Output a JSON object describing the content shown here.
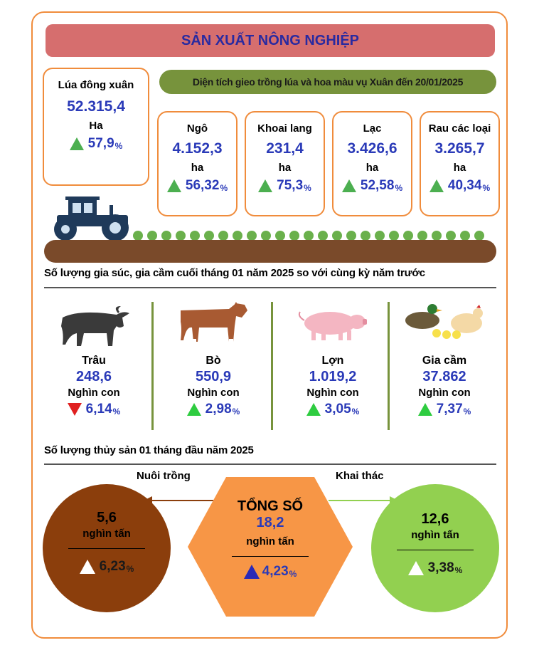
{
  "title": "SẢN XUẤT NÔNG NGHIỆP",
  "rice": {
    "label": "Lúa đông xuân",
    "value": "52.315,4",
    "unit": "Ha",
    "change": "57,9",
    "pct": "%"
  },
  "crops_banner": "Diện tích gieo trồng lúa và hoa màu vụ Xuân đến 20/01/2025",
  "crops": [
    {
      "label": "Ngô",
      "value": "4.152,3",
      "unit": "ha",
      "change": "56,32",
      "pct": "%"
    },
    {
      "label": "Khoai lang",
      "value": "231,4",
      "unit": "ha",
      "change": "75,3",
      "pct": "%"
    },
    {
      "label": "Lạc",
      "value": "3.426,6",
      "unit": "ha",
      "change": "52,58",
      "pct": "%"
    },
    {
      "label": "Rau các loại",
      "value": "3.265,7",
      "unit": "ha",
      "change": "40,34",
      "pct": "%"
    }
  ],
  "livestock_title": "Số lượng gia súc, gia cầm cuối tháng 01 năm 2025 so với cùng kỳ năm trước",
  "livestock": [
    {
      "label": "Trâu",
      "value": "248,6",
      "unit": "Nghìn con",
      "change": "6,14",
      "pct": "%",
      "trend": "down"
    },
    {
      "label": "Bò",
      "value": "550,9",
      "unit": "Nghìn con",
      "change": "2,98",
      "pct": "%",
      "trend": "up"
    },
    {
      "label": "Lợn",
      "value": "1.019,2",
      "unit": "Nghìn con",
      "change": "3,05",
      "pct": "%",
      "trend": "up"
    },
    {
      "label": "Gia cầm",
      "value": "37.862",
      "unit": "Nghìn con",
      "change": "7,37",
      "pct": "%",
      "trend": "up"
    }
  ],
  "fishery_title": "Số lượng thủy sản 01 tháng đầu năm 2025",
  "fishery": {
    "aquaculture": {
      "label": "Nuôi trồng",
      "value": "5,6",
      "unit": "nghìn tấn",
      "change": "6,23",
      "pct": "%"
    },
    "total": {
      "label": "TỔNG SỐ",
      "value": "18,2",
      "unit": "nghìn tấn",
      "change": "4,23",
      "pct": "%"
    },
    "catch": {
      "label": "Khai thác",
      "value": "12,6",
      "unit": "nghìn tấn",
      "change": "3,38",
      "pct": "%"
    }
  },
  "colors": {
    "accent": "#f08c3c",
    "title_bar": "#d66e6e",
    "value_blue": "#2a3ab8",
    "banner_green": "#77933c",
    "brown_circle": "#8b3e0c",
    "green_circle": "#92d050",
    "hexagon": "#f79646"
  },
  "icons": [
    "tractor-icon",
    "buffalo-icon",
    "cow-icon",
    "pig-icon",
    "poultry-icon"
  ]
}
